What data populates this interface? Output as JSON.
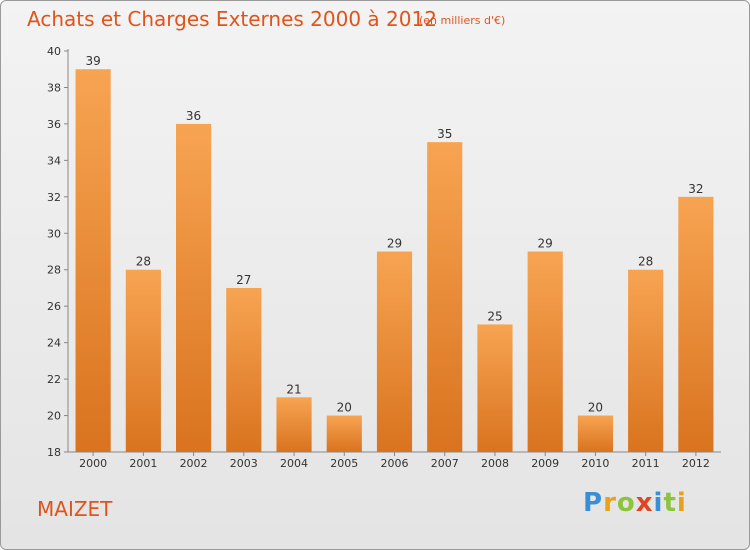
{
  "chart_data": {
    "type": "bar",
    "title": "Achats et Charges Externes 2000 à 2012",
    "subtitle": "(en milliers d'€)",
    "categories": [
      "2000",
      "2001",
      "2002",
      "2003",
      "2004",
      "2005",
      "2006",
      "2007",
      "2008",
      "2009",
      "2010",
      "2011",
      "2012"
    ],
    "values": [
      39,
      28,
      36,
      27,
      21,
      20,
      29,
      35,
      25,
      29,
      20,
      28,
      32
    ],
    "ylim": [
      18,
      40
    ],
    "yticks": [
      18,
      20,
      22,
      24,
      26,
      28,
      30,
      32,
      34,
      36,
      38,
      40
    ],
    "grid": false,
    "bar_color_top": "#f7a452",
    "bar_color_bottom": "#d9731f"
  },
  "commune": "MAIZET",
  "logo": {
    "letters": [
      "P",
      "r",
      "o",
      "x",
      "i",
      "t",
      "i"
    ],
    "colors": [
      "#3a8fd4",
      "#e8a21a",
      "#8cc43c",
      "#e04420",
      "#3a8fd4",
      "#8cc43c",
      "#e8a21a"
    ]
  }
}
